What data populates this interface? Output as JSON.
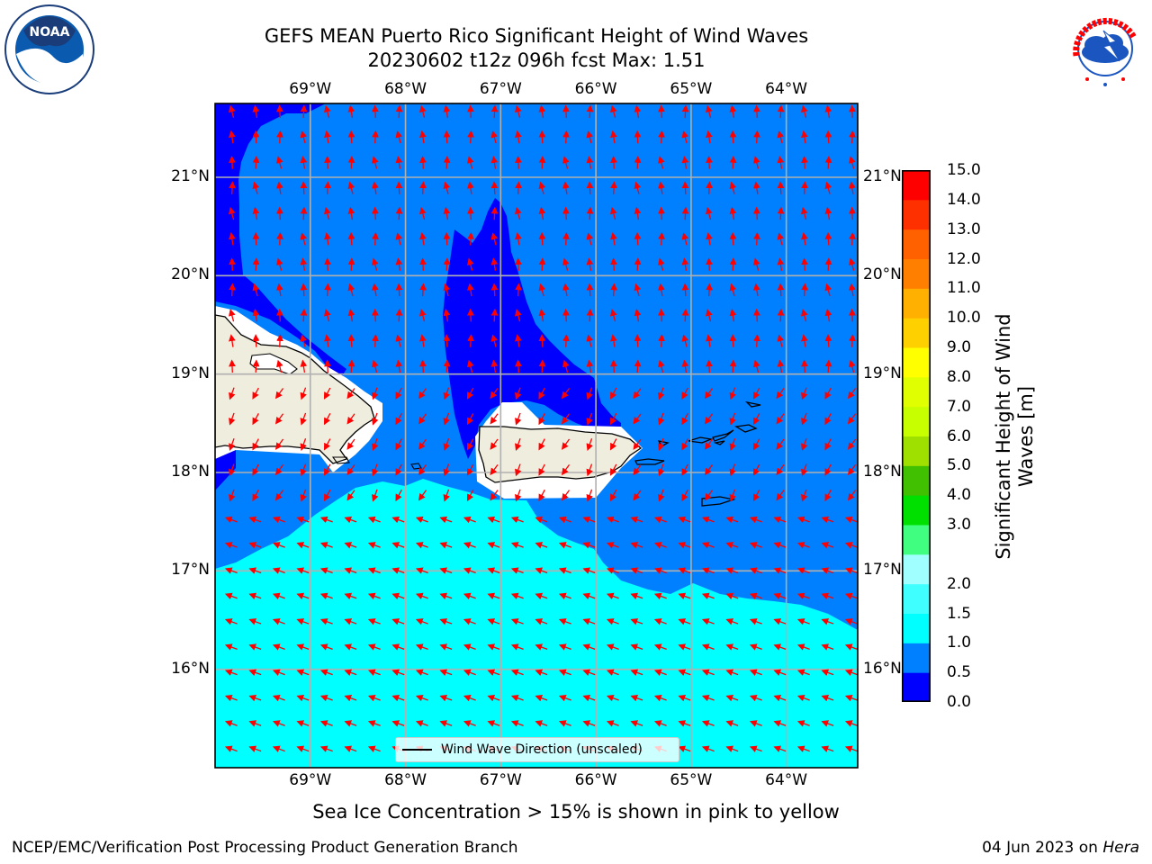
{
  "header": {
    "title_line1": "GEFS MEAN Puerto Rico Significant Height of Wind Waves",
    "title_line2": "20230602 t12z 096h fcst   Max: 1.51"
  },
  "map": {
    "lon_ticks": [
      "69°W",
      "68°W",
      "67°W",
      "66°W",
      "65°W",
      "64°W"
    ],
    "lat_ticks": [
      "21°N",
      "20°N",
      "19°N",
      "18°N",
      "17°N",
      "16°N"
    ],
    "extent": {
      "lon_min": -70.0,
      "lon_max": -63.25,
      "lat_min": 15.0,
      "lat_max": 21.75
    },
    "gridlines": true,
    "legend": {
      "label": "Wind Wave Direction (unscaled)",
      "placement": "bottom-center"
    },
    "arrow_color": "#ff0000",
    "land_color": "#efedde"
  },
  "colorbar": {
    "label": "Significant Height of Wind Waves [m]",
    "ticks": [
      "15.0",
      "14.0",
      "13.0",
      "12.0",
      "11.0",
      "10.0",
      "9.0",
      "8.0",
      "7.0",
      "6.0",
      "5.0",
      "4.0",
      "3.0",
      "2.0",
      "1.5",
      "1.0",
      "0.5",
      "0.0"
    ],
    "levels": [
      0.0,
      0.5,
      1.0,
      1.5,
      2.0,
      2.5,
      3.0,
      4.0,
      5.0,
      6.0,
      7.0,
      8.0,
      9.0,
      10.0,
      11.0,
      12.0,
      13.0,
      14.0,
      15.0
    ],
    "colors": [
      "#0000ff",
      "#0080ff",
      "#00ffff",
      "#40ffff",
      "#a0ffff",
      "#40ff80",
      "#00e000",
      "#40c000",
      "#a0e000",
      "#c8ff00",
      "#e0ff00",
      "#ffff00",
      "#ffd000",
      "#ffb000",
      "#ff8000",
      "#ff6000",
      "#ff3000",
      "#ff0000"
    ]
  },
  "notes": {
    "sea_ice": "Sea Ice Concentration > 15% is shown in pink to yellow"
  },
  "footer": {
    "left": "NCEP/EMC/Verification Post Processing Product Generation Branch",
    "date": "04 Jun 2023 on ",
    "host": "Hera"
  },
  "logos": {
    "noaa_text": "NOAA",
    "nws_text": "NATIONAL WEATHER SERVICE"
  }
}
